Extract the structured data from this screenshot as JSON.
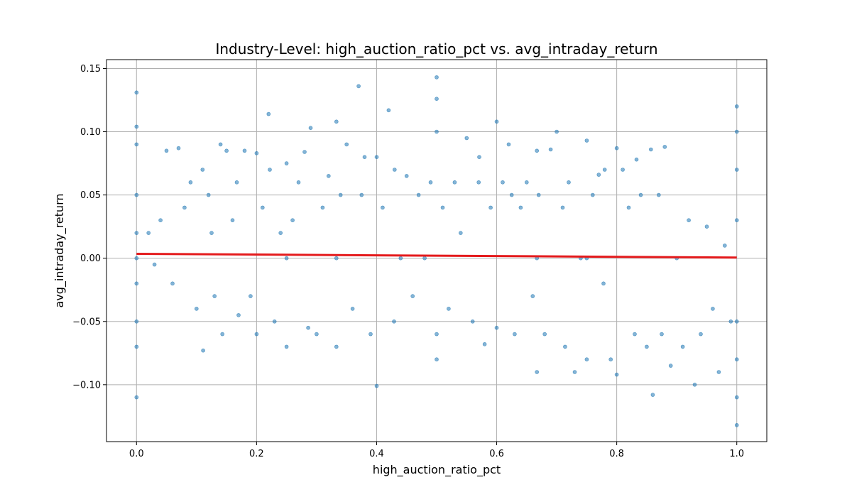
{
  "chart_data": {
    "type": "scatter",
    "title": "Industry-Level: high_auction_ratio_pct vs. avg_intraday_return",
    "xlabel": "high_auction_ratio_pct",
    "ylabel": "avg_intraday_return",
    "xlim": [
      -0.05,
      1.05
    ],
    "ylim": [
      -0.145,
      0.157
    ],
    "x_ticks": [
      {
        "value": 0.0,
        "label": "0.0"
      },
      {
        "value": 0.2,
        "label": "0.2"
      },
      {
        "value": 0.4,
        "label": "0.4"
      },
      {
        "value": 0.6,
        "label": "0.6"
      },
      {
        "value": 0.8,
        "label": "0.8"
      },
      {
        "value": 1.0,
        "label": "1.0"
      }
    ],
    "y_ticks": [
      {
        "value": -0.1,
        "label": "−0.10"
      },
      {
        "value": -0.05,
        "label": "−0.05"
      },
      {
        "value": 0.0,
        "label": "0.00"
      },
      {
        "value": 0.05,
        "label": "0.05"
      },
      {
        "value": 0.1,
        "label": "0.10"
      },
      {
        "value": 0.15,
        "label": "0.15"
      }
    ],
    "grid": true,
    "point_color": "#1f77b4",
    "trend_color": "#e41a1c",
    "series": [
      {
        "values_x": [
          0.0,
          0.0,
          0.0,
          0.0,
          0.0,
          0.0,
          0.0,
          0.0,
          0.0,
          0.0,
          0.02,
          0.03,
          0.04,
          0.05,
          0.06,
          0.07,
          0.08,
          0.09,
          0.1,
          0.11,
          0.111,
          0.12,
          0.125,
          0.13,
          0.14,
          0.143,
          0.15,
          0.16,
          0.167,
          0.17,
          0.18,
          0.19,
          0.2,
          0.2,
          0.21,
          0.22,
          0.222,
          0.23,
          0.24,
          0.25,
          0.25,
          0.25,
          0.26,
          0.27,
          0.28,
          0.286,
          0.29,
          0.3,
          0.31,
          0.32,
          0.333,
          0.333,
          0.333,
          0.34,
          0.35,
          0.36,
          0.37,
          0.375,
          0.38,
          0.39,
          0.4,
          0.4,
          0.41,
          0.42,
          0.429,
          0.43,
          0.44,
          0.45,
          0.46,
          0.47,
          0.48,
          0.49,
          0.5,
          0.5,
          0.5,
          0.5,
          0.5,
          0.51,
          0.52,
          0.53,
          0.54,
          0.55,
          0.56,
          0.57,
          0.571,
          0.58,
          0.59,
          0.6,
          0.6,
          0.61,
          0.62,
          0.625,
          0.63,
          0.64,
          0.65,
          0.66,
          0.667,
          0.667,
          0.667,
          0.67,
          0.68,
          0.69,
          0.7,
          0.71,
          0.714,
          0.72,
          0.73,
          0.74,
          0.75,
          0.75,
          0.75,
          0.76,
          0.77,
          0.778,
          0.78,
          0.79,
          0.8,
          0.8,
          0.81,
          0.82,
          0.83,
          0.833,
          0.84,
          0.85,
          0.857,
          0.86,
          0.87,
          0.875,
          0.88,
          0.89,
          0.9,
          0.91,
          0.92,
          0.93,
          0.94,
          0.95,
          0.96,
          0.97,
          0.98,
          0.99,
          1.0,
          1.0,
          1.0,
          1.0,
          1.0,
          1.0,
          1.0,
          1.0
        ],
        "values_y": [
          0.131,
          0.104,
          0.09,
          0.05,
          0.02,
          -0.02,
          -0.05,
          -0.07,
          -0.11,
          0.0,
          0.02,
          -0.005,
          0.03,
          0.085,
          -0.02,
          0.087,
          0.04,
          0.06,
          -0.04,
          0.07,
          -0.073,
          0.05,
          0.02,
          -0.03,
          0.09,
          -0.06,
          0.085,
          0.03,
          0.06,
          -0.045,
          0.085,
          -0.03,
          0.083,
          -0.06,
          0.04,
          0.114,
          0.07,
          -0.05,
          0.02,
          0.075,
          -0.07,
          0.0,
          0.03,
          0.06,
          0.084,
          -0.055,
          0.103,
          -0.06,
          0.04,
          0.065,
          0.108,
          -0.07,
          0.0,
          0.05,
          0.09,
          -0.04,
          0.136,
          0.05,
          0.08,
          -0.06,
          0.08,
          -0.101,
          0.04,
          0.117,
          -0.05,
          0.07,
          0.0,
          0.065,
          -0.03,
          0.05,
          0.0,
          0.06,
          0.143,
          0.126,
          0.1,
          -0.08,
          -0.06,
          0.04,
          -0.04,
          0.06,
          0.02,
          0.095,
          -0.05,
          0.06,
          0.08,
          -0.068,
          0.04,
          0.108,
          -0.055,
          0.06,
          0.09,
          0.05,
          -0.06,
          0.04,
          0.06,
          -0.03,
          0.085,
          -0.09,
          0.0,
          0.05,
          -0.06,
          0.086,
          0.1,
          0.04,
          -0.07,
          0.06,
          -0.09,
          0.0,
          0.093,
          -0.08,
          0.0,
          0.05,
          0.066,
          -0.02,
          0.07,
          -0.08,
          0.087,
          -0.092,
          0.07,
          0.04,
          -0.06,
          0.078,
          0.05,
          -0.07,
          0.086,
          -0.108,
          0.05,
          -0.06,
          0.088,
          -0.085,
          0.0,
          -0.07,
          0.03,
          -0.1,
          -0.06,
          0.025,
          -0.04,
          -0.09,
          0.01,
          -0.05,
          0.12,
          0.1,
          0.07,
          0.03,
          -0.05,
          -0.08,
          -0.11,
          -0.132
        ]
      }
    ],
    "trend_line": {
      "x": [
        0.0,
        1.0
      ],
      "y": [
        0.0035,
        0.0005
      ]
    }
  }
}
